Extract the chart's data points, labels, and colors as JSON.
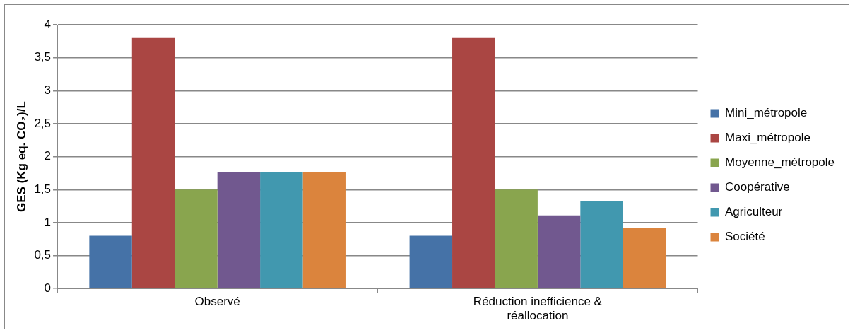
{
  "chart_data": {
    "type": "bar",
    "ylabel": "GES (Kg eq. CO₂)/L",
    "categories": [
      "Observé",
      "Réduction inefficience & réallocation"
    ],
    "series": [
      {
        "name": "Mini_métropole",
        "color": "#4572a7",
        "values": [
          0.8,
          0.8
        ]
      },
      {
        "name": "Maxi_métropole",
        "color": "#aa4643",
        "values": [
          3.8,
          3.8
        ]
      },
      {
        "name": "Moyenne_métropole",
        "color": "#89a54e",
        "values": [
          1.5,
          1.5
        ]
      },
      {
        "name": "Coopérative",
        "color": "#71588f",
        "values": [
          1.76,
          1.11
        ]
      },
      {
        "name": "Agriculteur",
        "color": "#4198af",
        "values": [
          1.76,
          1.33
        ]
      },
      {
        "name": "Société",
        "color": "#db843d",
        "values": [
          1.76,
          0.92
        ]
      }
    ],
    "ylim": [
      0,
      4
    ],
    "yticks": [
      0,
      {
        "value": 0.5,
        "label": "0,5"
      },
      1,
      {
        "value": 1.5,
        "label": "1,5"
      },
      2,
      {
        "value": 2.5,
        "label": "2,5"
      },
      3,
      {
        "value": 3.5,
        "label": "3,5"
      },
      4
    ],
    "grid": "y",
    "legend": "right"
  }
}
